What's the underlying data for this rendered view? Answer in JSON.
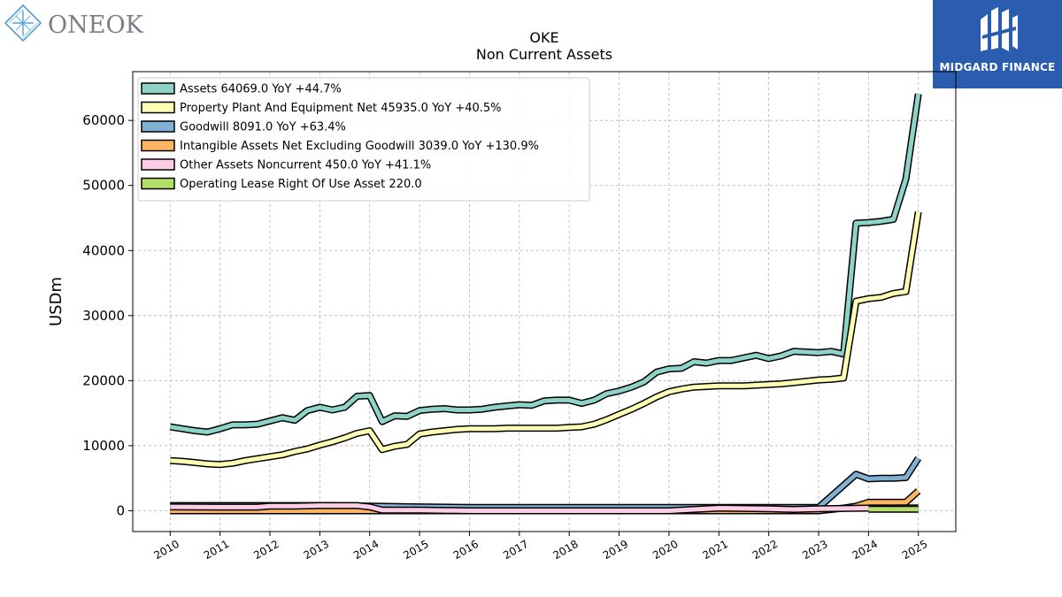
{
  "logos": {
    "left_text": "ONEOK",
    "right_text": "MIDGARD FINANCE"
  },
  "colors": {
    "assets": "#8dd3c7",
    "ppe": "#ffffb3",
    "goodwill": "#80b1d3",
    "intangible": "#fdb462",
    "other": "#fccde5",
    "lease": "#b3de69",
    "brand_right": "#2a5db0",
    "brand_left": "#3a8fd0"
  },
  "chart_data": {
    "type": "line",
    "title": "OKE",
    "subtitle": "Non Current  Assets",
    "xlabel": "",
    "ylabel": "USDm",
    "xlim": [
      2009.25,
      2025.75
    ],
    "ylim": [
      -3200,
      67500
    ],
    "x_ticks": [
      "2010",
      "2011",
      "2012",
      "2013",
      "2014",
      "2015",
      "2016",
      "2017",
      "2018",
      "2019",
      "2020",
      "2021",
      "2022",
      "2023",
      "2024",
      "2025"
    ],
    "y_ticks": [
      "0",
      "10000",
      "20000",
      "30000",
      "40000",
      "50000",
      "60000"
    ],
    "y_tick_values": [
      0,
      10000,
      20000,
      30000,
      40000,
      50000,
      60000
    ],
    "grid": true,
    "legend_position": "top-left",
    "series": [
      {
        "key": "assets",
        "name": "Assets  64069.0 YoY +44.7%",
        "points": [
          [
            2010.0,
            12900
          ],
          [
            2010.25,
            12600
          ],
          [
            2010.5,
            12300
          ],
          [
            2010.75,
            12100
          ],
          [
            2011.0,
            12600
          ],
          [
            2011.25,
            13200
          ],
          [
            2011.5,
            13200
          ],
          [
            2011.75,
            13300
          ],
          [
            2012.0,
            13800
          ],
          [
            2012.25,
            14300
          ],
          [
            2012.5,
            13900
          ],
          [
            2012.75,
            15400
          ],
          [
            2013.0,
            15900
          ],
          [
            2013.25,
            15500
          ],
          [
            2013.5,
            15900
          ],
          [
            2013.75,
            17600
          ],
          [
            2014.0,
            17700
          ],
          [
            2014.25,
            13700
          ],
          [
            2014.5,
            14600
          ],
          [
            2014.75,
            14500
          ],
          [
            2015.0,
            15400
          ],
          [
            2015.25,
            15600
          ],
          [
            2015.5,
            15700
          ],
          [
            2015.75,
            15500
          ],
          [
            2016.0,
            15500
          ],
          [
            2016.25,
            15600
          ],
          [
            2016.5,
            15900
          ],
          [
            2016.75,
            16100
          ],
          [
            2017.0,
            16300
          ],
          [
            2017.25,
            16200
          ],
          [
            2017.5,
            16900
          ],
          [
            2017.75,
            17000
          ],
          [
            2018.0,
            17000
          ],
          [
            2018.25,
            16500
          ],
          [
            2018.5,
            17000
          ],
          [
            2018.75,
            18000
          ],
          [
            2019.0,
            18400
          ],
          [
            2019.25,
            19000
          ],
          [
            2019.5,
            19800
          ],
          [
            2019.75,
            21300
          ],
          [
            2020.0,
            21800
          ],
          [
            2020.25,
            21900
          ],
          [
            2020.5,
            22900
          ],
          [
            2020.75,
            22700
          ],
          [
            2021.0,
            23100
          ],
          [
            2021.25,
            23100
          ],
          [
            2021.5,
            23500
          ],
          [
            2021.75,
            23900
          ],
          [
            2022.0,
            23400
          ],
          [
            2022.25,
            23800
          ],
          [
            2022.5,
            24500
          ],
          [
            2022.75,
            24400
          ],
          [
            2023.0,
            24300
          ],
          [
            2023.25,
            24500
          ],
          [
            2023.5,
            24100
          ],
          [
            2023.75,
            44200
          ],
          [
            2024.0,
            44300
          ],
          [
            2024.25,
            44500
          ],
          [
            2024.5,
            44800
          ],
          [
            2024.75,
            51000
          ],
          [
            2025.0,
            64069
          ]
        ]
      },
      {
        "key": "ppe",
        "name": "Property Plant And Equipment Net  45935.0 YoY +40.5%",
        "points": [
          [
            2010.0,
            7700
          ],
          [
            2010.25,
            7600
          ],
          [
            2010.5,
            7400
          ],
          [
            2010.75,
            7200
          ],
          [
            2011.0,
            7100
          ],
          [
            2011.25,
            7300
          ],
          [
            2011.5,
            7700
          ],
          [
            2011.75,
            8000
          ],
          [
            2012.0,
            8300
          ],
          [
            2012.25,
            8600
          ],
          [
            2012.5,
            9100
          ],
          [
            2012.75,
            9500
          ],
          [
            2013.0,
            10100
          ],
          [
            2013.25,
            10600
          ],
          [
            2013.5,
            11200
          ],
          [
            2013.75,
            11900
          ],
          [
            2014.0,
            12300
          ],
          [
            2014.25,
            9400
          ],
          [
            2014.5,
            9900
          ],
          [
            2014.75,
            10200
          ],
          [
            2015.0,
            11800
          ],
          [
            2015.25,
            12100
          ],
          [
            2015.5,
            12300
          ],
          [
            2015.75,
            12500
          ],
          [
            2016.0,
            12600
          ],
          [
            2016.25,
            12600
          ],
          [
            2016.5,
            12600
          ],
          [
            2016.75,
            12700
          ],
          [
            2017.0,
            12700
          ],
          [
            2017.25,
            12700
          ],
          [
            2017.5,
            12700
          ],
          [
            2017.75,
            12700
          ],
          [
            2018.0,
            12800
          ],
          [
            2018.25,
            12900
          ],
          [
            2018.5,
            13300
          ],
          [
            2018.75,
            14000
          ],
          [
            2019.0,
            14800
          ],
          [
            2019.25,
            15600
          ],
          [
            2019.5,
            16500
          ],
          [
            2019.75,
            17500
          ],
          [
            2020.0,
            18300
          ],
          [
            2020.25,
            18700
          ],
          [
            2020.5,
            19000
          ],
          [
            2020.75,
            19100
          ],
          [
            2021.0,
            19200
          ],
          [
            2021.25,
            19200
          ],
          [
            2021.5,
            19200
          ],
          [
            2021.75,
            19300
          ],
          [
            2022.0,
            19400
          ],
          [
            2022.25,
            19500
          ],
          [
            2022.5,
            19700
          ],
          [
            2022.75,
            19900
          ],
          [
            2023.0,
            20100
          ],
          [
            2023.25,
            20200
          ],
          [
            2023.5,
            20400
          ],
          [
            2023.75,
            32200
          ],
          [
            2024.0,
            32600
          ],
          [
            2024.25,
            32800
          ],
          [
            2024.5,
            33400
          ],
          [
            2024.75,
            33700
          ],
          [
            2025.0,
            45935
          ]
        ]
      },
      {
        "key": "goodwill",
        "name": "Goodwill  8091.0 YoY +63.4%",
        "points": [
          [
            2010.0,
            800
          ],
          [
            2011.0,
            800
          ],
          [
            2012.0,
            800
          ],
          [
            2013.0,
            800
          ],
          [
            2014.0,
            700
          ],
          [
            2015.0,
            600
          ],
          [
            2016.0,
            500
          ],
          [
            2017.0,
            500
          ],
          [
            2018.0,
            500
          ],
          [
            2019.0,
            500
          ],
          [
            2020.0,
            500
          ],
          [
            2020.25,
            500
          ],
          [
            2021.0,
            500
          ],
          [
            2022.0,
            500
          ],
          [
            2023.0,
            500
          ],
          [
            2023.75,
            5600
          ],
          [
            2024.0,
            4900
          ],
          [
            2024.25,
            5000
          ],
          [
            2024.5,
            5000
          ],
          [
            2024.75,
            5100
          ],
          [
            2025.0,
            8091
          ]
        ]
      },
      {
        "key": "intangible",
        "name": "Intangible Assets Net Excluding Goodwill  3039.0 YoY +130.9%",
        "points": [
          [
            2010.0,
            0
          ],
          [
            2011.0,
            0
          ],
          [
            2012.0,
            0
          ],
          [
            2013.0,
            0
          ],
          [
            2014.0,
            0
          ],
          [
            2015.0,
            0
          ],
          [
            2016.0,
            0
          ],
          [
            2017.0,
            0
          ],
          [
            2018.0,
            0
          ],
          [
            2019.0,
            0
          ],
          [
            2020.0,
            0
          ],
          [
            2021.0,
            0
          ],
          [
            2022.0,
            0
          ],
          [
            2023.0,
            0
          ],
          [
            2023.5,
            400
          ],
          [
            2023.75,
            700
          ],
          [
            2024.0,
            1300
          ],
          [
            2024.25,
            1300
          ],
          [
            2024.5,
            1300
          ],
          [
            2024.75,
            1300
          ],
          [
            2025.0,
            3039
          ]
        ]
      },
      {
        "key": "other",
        "name": "Other Assets Noncurrent  450.0 YoY +41.1%",
        "points": [
          [
            2010.0,
            600
          ],
          [
            2011.0,
            550
          ],
          [
            2011.75,
            550
          ],
          [
            2012.0,
            700
          ],
          [
            2012.5,
            700
          ],
          [
            2013.0,
            800
          ],
          [
            2013.75,
            800
          ],
          [
            2014.0,
            600
          ],
          [
            2014.25,
            100
          ],
          [
            2015.0,
            100
          ],
          [
            2016.0,
            0
          ],
          [
            2017.0,
            0
          ],
          [
            2018.0,
            0
          ],
          [
            2019.0,
            0
          ],
          [
            2020.0,
            0
          ],
          [
            2020.75,
            300
          ],
          [
            2021.0,
            400
          ],
          [
            2022.0,
            300
          ],
          [
            2022.5,
            200
          ],
          [
            2023.0,
            300
          ],
          [
            2024.0,
            400
          ],
          [
            2024.5,
            400
          ],
          [
            2025.0,
            450
          ]
        ]
      },
      {
        "key": "lease",
        "name": "Operating Lease Right Of Use Asset  220.0",
        "points": [
          [
            2024.0,
            220
          ],
          [
            2024.5,
            220
          ],
          [
            2025.0,
            220
          ]
        ]
      }
    ]
  }
}
